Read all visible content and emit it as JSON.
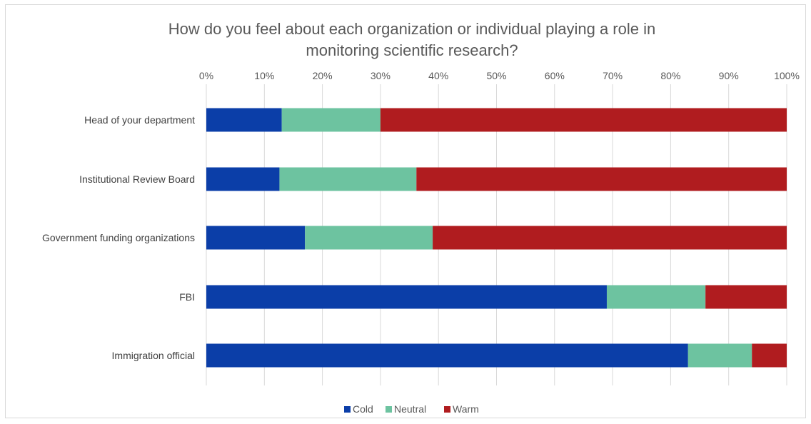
{
  "chart_data": {
    "type": "bar",
    "orientation": "horizontal",
    "stacked": true,
    "title": "How do you feel about each organization or individual playing a role in monitoring scientific research?",
    "title_lines": [
      "How do you feel about each organization or individual playing a role in",
      "monitoring scientific research?"
    ],
    "x_axis": {
      "position": "top",
      "range": [
        0,
        100
      ],
      "ticks": [
        "0%",
        "10%",
        "20%",
        "30%",
        "40%",
        "50%",
        "60%",
        "70%",
        "80%",
        "90%",
        "100%"
      ]
    },
    "grid": true,
    "legend": {
      "position": "bottom"
    },
    "categories": [
      "Head of your department",
      "Institutional Review Board",
      "Government funding organizations",
      "FBI",
      "Immigration official"
    ],
    "series": [
      {
        "name": "Cold",
        "color": "#0b3ea8",
        "values": [
          13,
          12.6,
          17,
          69,
          83
        ]
      },
      {
        "name": "Neutral",
        "color": "#6dc3a0",
        "values": [
          17,
          23.6,
          22,
          17,
          11
        ]
      },
      {
        "name": "Warm",
        "color": "#b01c1f",
        "values": [
          70,
          63.8,
          61,
          14,
          6
        ]
      }
    ]
  }
}
